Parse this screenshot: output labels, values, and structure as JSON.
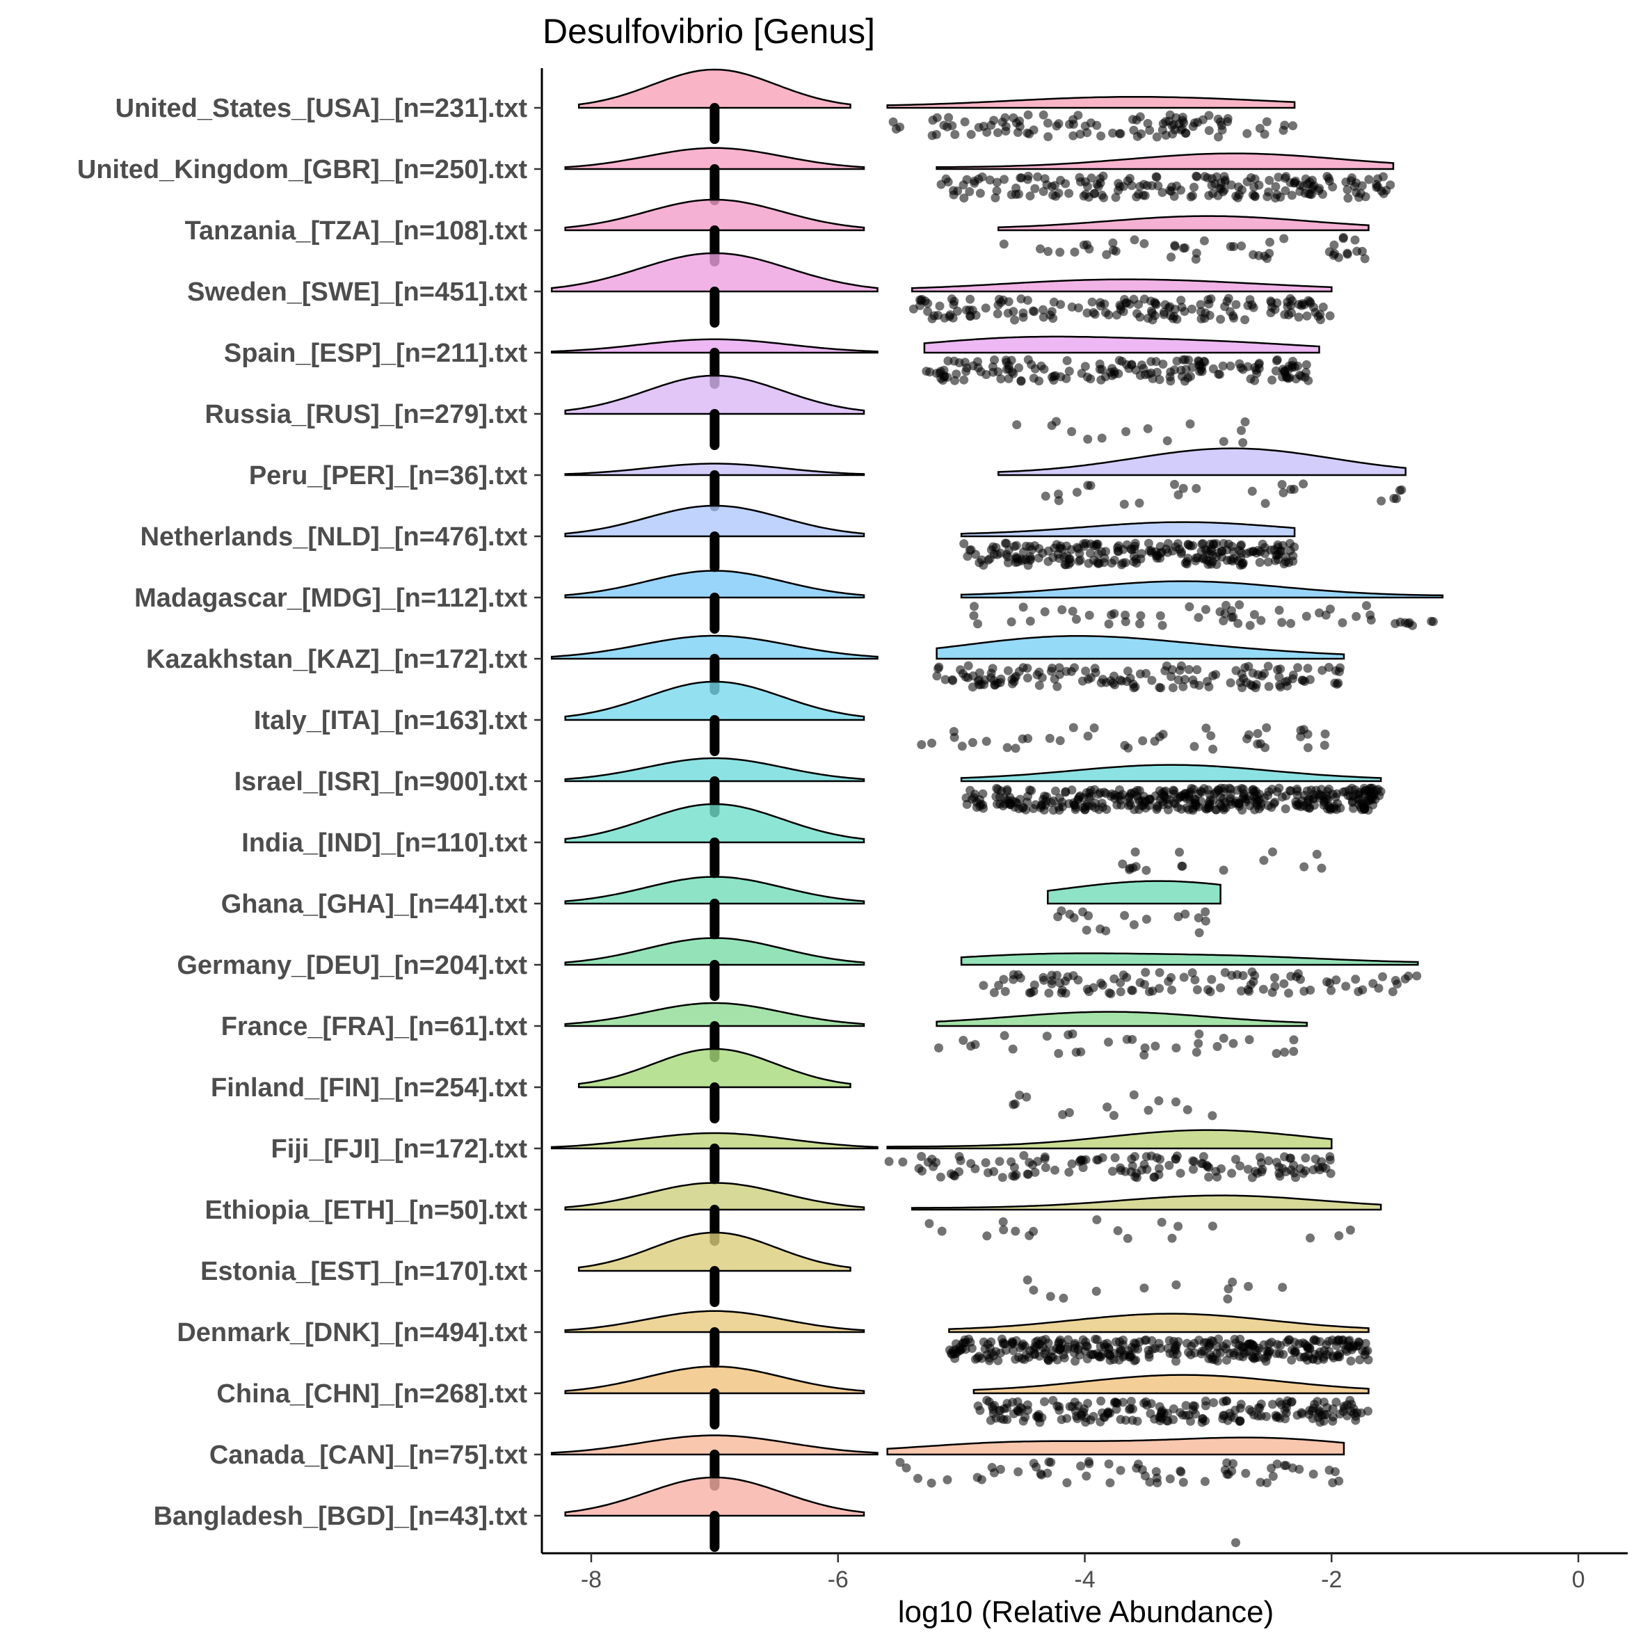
{
  "chart_data": {
    "type": "raincloud",
    "title": "Desulfovibrio [Genus]",
    "xlabel": "log10 (Relative Abundance)",
    "ylabel": "",
    "xlim": [
      -8.4,
      0.4
    ],
    "xticks": [
      -8,
      -6,
      -4,
      -2,
      0
    ],
    "grid": false,
    "legend": "none",
    "marker_color": "#000000",
    "marker_opacity": 0.55,
    "zero_point_x": -7.0,
    "groups": [
      {
        "label": "United_States_[USA]_[n=231].txt",
        "color": "#f8a3b8",
        "zero": {
          "center": -7.0,
          "sd": 0.5,
          "weight": 1.0
        },
        "nz": {
          "range": [
            -5.6,
            -2.3
          ],
          "peaks": [
            [
              -4,
              0.15
            ],
            [
              -3,
              0.12
            ]
          ],
          "count": 100
        }
      },
      {
        "label": "United_Kingdom_[GBR]_[n=250].txt",
        "color": "#f6a0c2",
        "zero": {
          "center": -7.0,
          "sd": 0.55,
          "weight": 0.55
        },
        "nz": {
          "range": [
            -5.2,
            -1.5
          ],
          "peaks": [
            [
              -3,
              0.2
            ],
            [
              -2.5,
              0.15
            ]
          ],
          "count": 180
        }
      },
      {
        "label": "Tanzania_[TZA]_[n=108].txt",
        "color": "#f29ec8",
        "zero": {
          "center": -7.0,
          "sd": 0.55,
          "weight": 0.8
        },
        "nz": {
          "range": [
            -4.7,
            -1.7
          ],
          "peaks": [
            [
              -3,
              0.3
            ]
          ],
          "count": 45
        }
      },
      {
        "label": "Sweden_[SWE]_[n=451].txt",
        "color": "#eda0e0",
        "zero": {
          "center": -7.0,
          "sd": 0.6,
          "weight": 1.0
        },
        "nz": {
          "range": [
            -5.4,
            -2.0
          ],
          "peaks": [
            [
              -4,
              0.18
            ],
            [
              -3,
              0.12
            ]
          ],
          "count": 150
        }
      },
      {
        "label": "Spain_[ESP]_[n=211].txt",
        "color": "#e8a6f0",
        "zero": {
          "center": -7.0,
          "sd": 0.6,
          "weight": 0.35
        },
        "nz": {
          "range": [
            -5.3,
            -2.1
          ],
          "peaks": [
            [
              -4.5,
              0.3
            ],
            [
              -3,
              0.2
            ]
          ],
          "count": 160
        }
      },
      {
        "label": "Russia_[RUS]_[n=279].txt",
        "color": "#d9b8f5",
        "zero": {
          "center": -7.0,
          "sd": 0.55,
          "weight": 1.0
        },
        "nz": {
          "range": [
            -4.6,
            -2.4
          ],
          "peaks": [],
          "count": 14
        }
      },
      {
        "label": "Peru_[PER]_[n=36].txt",
        "color": "#c8c1fa",
        "zero": {
          "center": -7.0,
          "sd": 0.55,
          "weight": 0.3
        },
        "nz": {
          "range": [
            -4.7,
            -1.4
          ],
          "peaks": [
            [
              -2.8,
              0.6
            ]
          ],
          "count": 24
        }
      },
      {
        "label": "Netherlands_[NLD]_[n=476].txt",
        "color": "#afc8fc",
        "zero": {
          "center": -7.0,
          "sd": 0.55,
          "weight": 0.8
        },
        "nz": {
          "range": [
            -5.0,
            -2.3
          ],
          "peaks": [
            [
              -3.2,
              0.3
            ]
          ],
          "count": 220
        }
      },
      {
        "label": "Madagascar_[MDG]_[n=112].txt",
        "color": "#7fcafa",
        "zero": {
          "center": -7.0,
          "sd": 0.55,
          "weight": 0.7
        },
        "nz": {
          "range": [
            -5.0,
            -1.1
          ],
          "peaks": [
            [
              -3.2,
              0.35
            ]
          ],
          "count": 55
        }
      },
      {
        "label": "Kazakhstan_[KAZ]_[n=172].txt",
        "color": "#7ad1f5",
        "zero": {
          "center": -7.0,
          "sd": 0.6,
          "weight": 0.6
        },
        "nz": {
          "range": [
            -5.2,
            -1.9
          ],
          "peaks": [
            [
              -4.2,
              0.45
            ],
            [
              -3,
              0.15
            ]
          ],
          "count": 140
        }
      },
      {
        "label": "Italy_[ITA]_[n=163].txt",
        "color": "#78d9ec",
        "zero": {
          "center": -7.0,
          "sd": 0.55,
          "weight": 1.0
        },
        "nz": {
          "range": [
            -5.4,
            -1.9
          ],
          "peaks": [],
          "count": 40
        }
      },
      {
        "label": "Israel_[ISR]_[n=900].txt",
        "color": "#6fdbdb",
        "zero": {
          "center": -7.0,
          "sd": 0.55,
          "weight": 0.6
        },
        "nz": {
          "range": [
            -5.0,
            -1.6
          ],
          "peaks": [
            [
              -3.3,
              0.35
            ]
          ],
          "count": 380
        }
      },
      {
        "label": "India_[IND]_[n=110].txt",
        "color": "#71deca",
        "zero": {
          "center": -7.0,
          "sd": 0.55,
          "weight": 1.0
        },
        "nz": {
          "range": [
            -3.7,
            -2.0
          ],
          "peaks": [],
          "count": 16
        }
      },
      {
        "label": "Ghana_[GHA]_[n=44].txt",
        "color": "#72dcb8",
        "zero": {
          "center": -7.0,
          "sd": 0.55,
          "weight": 0.7
        },
        "nz": {
          "range": [
            -4.3,
            -2.9
          ],
          "peaks": [
            [
              -3.4,
              0.5
            ]
          ],
          "count": 18
        }
      },
      {
        "label": "Germany_[DEU]_[n=204].txt",
        "color": "#79dba6",
        "zero": {
          "center": -7.0,
          "sd": 0.55,
          "weight": 0.7
        },
        "nz": {
          "range": [
            -5.0,
            -1.3
          ],
          "peaks": [
            [
              -4.3,
              0.2
            ],
            [
              -2.8,
              0.15
            ]
          ],
          "count": 100
        }
      },
      {
        "label": "France_[FRA]_[n=61].txt",
        "color": "#8edb94",
        "zero": {
          "center": -7.0,
          "sd": 0.55,
          "weight": 0.6
        },
        "nz": {
          "range": [
            -5.2,
            -2.2
          ],
          "peaks": [
            [
              -3.8,
              0.3
            ]
          ],
          "count": 30
        }
      },
      {
        "label": "Finland_[FIN]_[n=254].txt",
        "color": "#a7da7c",
        "zero": {
          "center": -7.0,
          "sd": 0.5,
          "weight": 1.0
        },
        "nz": {
          "range": [
            -4.8,
            -2.8
          ],
          "peaks": [],
          "count": 14
        }
      },
      {
        "label": "Fiji_[FJI]_[n=172].txt",
        "color": "#bed47b",
        "zero": {
          "center": -7.0,
          "sd": 0.6,
          "weight": 0.4
        },
        "nz": {
          "range": [
            -5.6,
            -2.0
          ],
          "peaks": [
            [
              -3,
              0.4
            ]
          ],
          "count": 130
        }
      },
      {
        "label": "Ethiopia_[ETH]_[n=50].txt",
        "color": "#cdd07e",
        "zero": {
          "center": -7.0,
          "sd": 0.55,
          "weight": 0.7
        },
        "nz": {
          "range": [
            -5.4,
            -1.6
          ],
          "peaks": [
            [
              -2.9,
              0.3
            ]
          ],
          "count": 18
        }
      },
      {
        "label": "Estonia_[EST]_[n=170].txt",
        "color": "#dccd7b",
        "zero": {
          "center": -7.0,
          "sd": 0.5,
          "weight": 1.0
        },
        "nz": {
          "range": [
            -4.6,
            -2.3
          ],
          "peaks": [],
          "count": 12
        }
      },
      {
        "label": "Denmark_[DNK]_[n=494].txt",
        "color": "#e8c97e",
        "zero": {
          "center": -7.0,
          "sd": 0.55,
          "weight": 0.55
        },
        "nz": {
          "range": [
            -5.1,
            -1.7
          ],
          "peaks": [
            [
              -3.3,
              0.4
            ]
          ],
          "count": 330
        }
      },
      {
        "label": "China_[CHN]_[n=268].txt",
        "color": "#f0c27c",
        "zero": {
          "center": -7.0,
          "sd": 0.55,
          "weight": 0.7
        },
        "nz": {
          "range": [
            -4.9,
            -1.7
          ],
          "peaks": [
            [
              -3.2,
              0.4
            ]
          ],
          "count": 200
        }
      },
      {
        "label": "Canada_[CAN]_[n=75].txt",
        "color": "#f8b89a",
        "zero": {
          "center": -7.0,
          "sd": 0.6,
          "weight": 0.5
        },
        "nz": {
          "range": [
            -5.6,
            -1.9
          ],
          "peaks": [
            [
              -4.5,
              0.25
            ],
            [
              -2.6,
              0.35
            ]
          ],
          "count": 60
        }
      },
      {
        "label": "Bangladesh_[BGD]_[n=43].txt",
        "color": "#f8b0a6",
        "zero": {
          "center": -7.0,
          "sd": 0.55,
          "weight": 1.0
        },
        "nz": {
          "range": [
            -2.8,
            -2.6
          ],
          "peaks": [],
          "count": 1
        }
      }
    ]
  }
}
